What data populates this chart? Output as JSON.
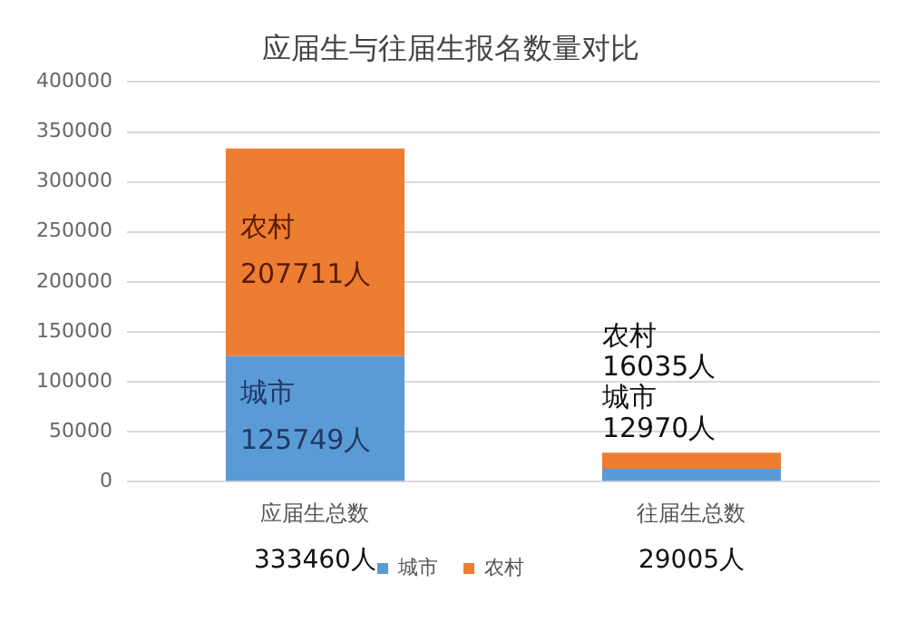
{
  "chart_data": {
    "type": "bar",
    "title": "应届生与往届生报名数量对比",
    "categories": [
      "应届生总数",
      "往届生总数"
    ],
    "stacked": true,
    "series": [
      {
        "name": "城市",
        "color": "#5b9bd5",
        "values": [
          125749,
          12970
        ],
        "value_labels": [
          "城市 125749人",
          "城市 12970人"
        ]
      },
      {
        "name": "农村",
        "color": "#ed7d31",
        "values": [
          207711,
          16035
        ],
        "value_labels": [
          "农村 207711人",
          "农村 16035人"
        ]
      }
    ],
    "totals": [
      "333460人",
      "29005人"
    ],
    "ylim": [
      0,
      400000
    ],
    "yticks": [
      0,
      50000,
      100000,
      150000,
      200000,
      250000,
      300000,
      350000,
      400000
    ],
    "grid": "y",
    "legend": "bottom"
  }
}
